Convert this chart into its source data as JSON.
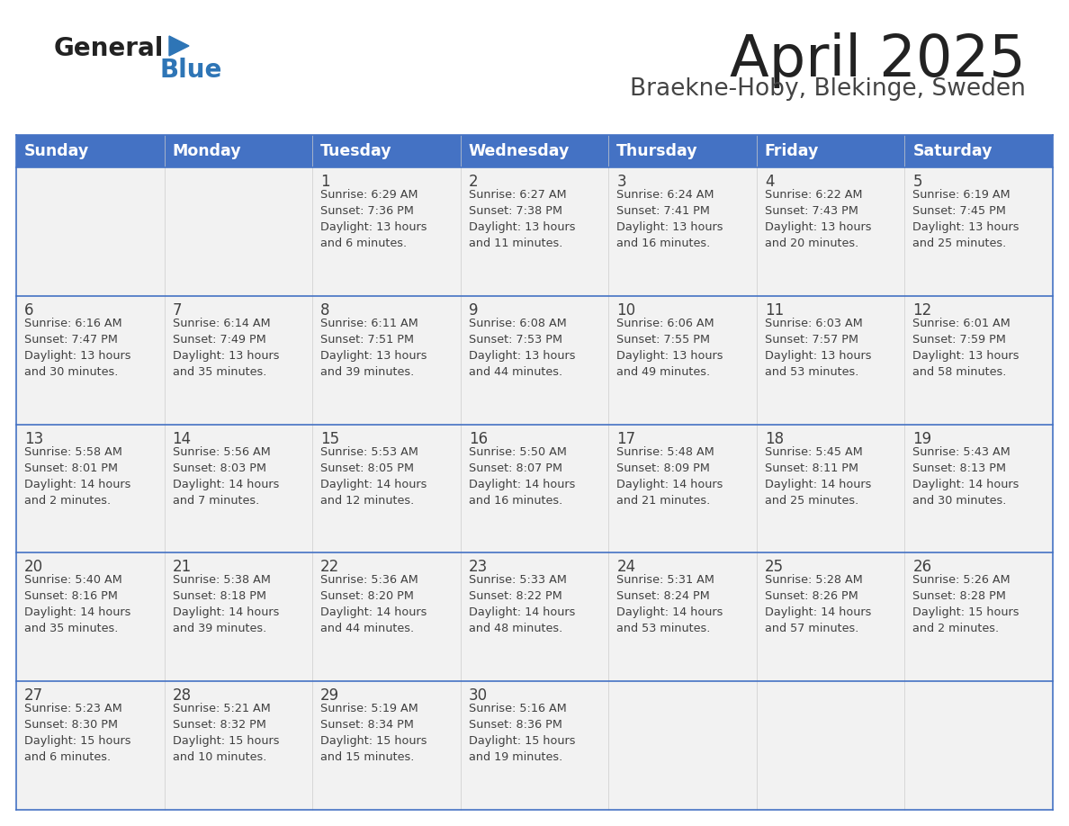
{
  "title": "April 2025",
  "subtitle": "Braekne-Hoby, Blekinge, Sweden",
  "days_of_week": [
    "Sunday",
    "Monday",
    "Tuesday",
    "Wednesday",
    "Thursday",
    "Friday",
    "Saturday"
  ],
  "header_bg": "#4472C4",
  "header_text": "#FFFFFF",
  "row_bg": "#F2F2F2",
  "cell_text_color": "#404040",
  "day_num_color": "#404040",
  "border_color": "#4472C4",
  "title_color": "#222222",
  "subtitle_color": "#444444",
  "logo_general_color": "#222222",
  "logo_blue_color": "#2E75B6",
  "calendar": [
    [
      {
        "day": null,
        "info": null
      },
      {
        "day": null,
        "info": null
      },
      {
        "day": 1,
        "info": "Sunrise: 6:29 AM\nSunset: 7:36 PM\nDaylight: 13 hours\nand 6 minutes."
      },
      {
        "day": 2,
        "info": "Sunrise: 6:27 AM\nSunset: 7:38 PM\nDaylight: 13 hours\nand 11 minutes."
      },
      {
        "day": 3,
        "info": "Sunrise: 6:24 AM\nSunset: 7:41 PM\nDaylight: 13 hours\nand 16 minutes."
      },
      {
        "day": 4,
        "info": "Sunrise: 6:22 AM\nSunset: 7:43 PM\nDaylight: 13 hours\nand 20 minutes."
      },
      {
        "day": 5,
        "info": "Sunrise: 6:19 AM\nSunset: 7:45 PM\nDaylight: 13 hours\nand 25 minutes."
      }
    ],
    [
      {
        "day": 6,
        "info": "Sunrise: 6:16 AM\nSunset: 7:47 PM\nDaylight: 13 hours\nand 30 minutes."
      },
      {
        "day": 7,
        "info": "Sunrise: 6:14 AM\nSunset: 7:49 PM\nDaylight: 13 hours\nand 35 minutes."
      },
      {
        "day": 8,
        "info": "Sunrise: 6:11 AM\nSunset: 7:51 PM\nDaylight: 13 hours\nand 39 minutes."
      },
      {
        "day": 9,
        "info": "Sunrise: 6:08 AM\nSunset: 7:53 PM\nDaylight: 13 hours\nand 44 minutes."
      },
      {
        "day": 10,
        "info": "Sunrise: 6:06 AM\nSunset: 7:55 PM\nDaylight: 13 hours\nand 49 minutes."
      },
      {
        "day": 11,
        "info": "Sunrise: 6:03 AM\nSunset: 7:57 PM\nDaylight: 13 hours\nand 53 minutes."
      },
      {
        "day": 12,
        "info": "Sunrise: 6:01 AM\nSunset: 7:59 PM\nDaylight: 13 hours\nand 58 minutes."
      }
    ],
    [
      {
        "day": 13,
        "info": "Sunrise: 5:58 AM\nSunset: 8:01 PM\nDaylight: 14 hours\nand 2 minutes."
      },
      {
        "day": 14,
        "info": "Sunrise: 5:56 AM\nSunset: 8:03 PM\nDaylight: 14 hours\nand 7 minutes."
      },
      {
        "day": 15,
        "info": "Sunrise: 5:53 AM\nSunset: 8:05 PM\nDaylight: 14 hours\nand 12 minutes."
      },
      {
        "day": 16,
        "info": "Sunrise: 5:50 AM\nSunset: 8:07 PM\nDaylight: 14 hours\nand 16 minutes."
      },
      {
        "day": 17,
        "info": "Sunrise: 5:48 AM\nSunset: 8:09 PM\nDaylight: 14 hours\nand 21 minutes."
      },
      {
        "day": 18,
        "info": "Sunrise: 5:45 AM\nSunset: 8:11 PM\nDaylight: 14 hours\nand 25 minutes."
      },
      {
        "day": 19,
        "info": "Sunrise: 5:43 AM\nSunset: 8:13 PM\nDaylight: 14 hours\nand 30 minutes."
      }
    ],
    [
      {
        "day": 20,
        "info": "Sunrise: 5:40 AM\nSunset: 8:16 PM\nDaylight: 14 hours\nand 35 minutes."
      },
      {
        "day": 21,
        "info": "Sunrise: 5:38 AM\nSunset: 8:18 PM\nDaylight: 14 hours\nand 39 minutes."
      },
      {
        "day": 22,
        "info": "Sunrise: 5:36 AM\nSunset: 8:20 PM\nDaylight: 14 hours\nand 44 minutes."
      },
      {
        "day": 23,
        "info": "Sunrise: 5:33 AM\nSunset: 8:22 PM\nDaylight: 14 hours\nand 48 minutes."
      },
      {
        "day": 24,
        "info": "Sunrise: 5:31 AM\nSunset: 8:24 PM\nDaylight: 14 hours\nand 53 minutes."
      },
      {
        "day": 25,
        "info": "Sunrise: 5:28 AM\nSunset: 8:26 PM\nDaylight: 14 hours\nand 57 minutes."
      },
      {
        "day": 26,
        "info": "Sunrise: 5:26 AM\nSunset: 8:28 PM\nDaylight: 15 hours\nand 2 minutes."
      }
    ],
    [
      {
        "day": 27,
        "info": "Sunrise: 5:23 AM\nSunset: 8:30 PM\nDaylight: 15 hours\nand 6 minutes."
      },
      {
        "day": 28,
        "info": "Sunrise: 5:21 AM\nSunset: 8:32 PM\nDaylight: 15 hours\nand 10 minutes."
      },
      {
        "day": 29,
        "info": "Sunrise: 5:19 AM\nSunset: 8:34 PM\nDaylight: 15 hours\nand 15 minutes."
      },
      {
        "day": 30,
        "info": "Sunrise: 5:16 AM\nSunset: 8:36 PM\nDaylight: 15 hours\nand 19 minutes."
      },
      {
        "day": null,
        "info": null
      },
      {
        "day": null,
        "info": null
      },
      {
        "day": null,
        "info": null
      }
    ]
  ],
  "figsize": [
    11.88,
    9.18
  ],
  "dpi": 100
}
